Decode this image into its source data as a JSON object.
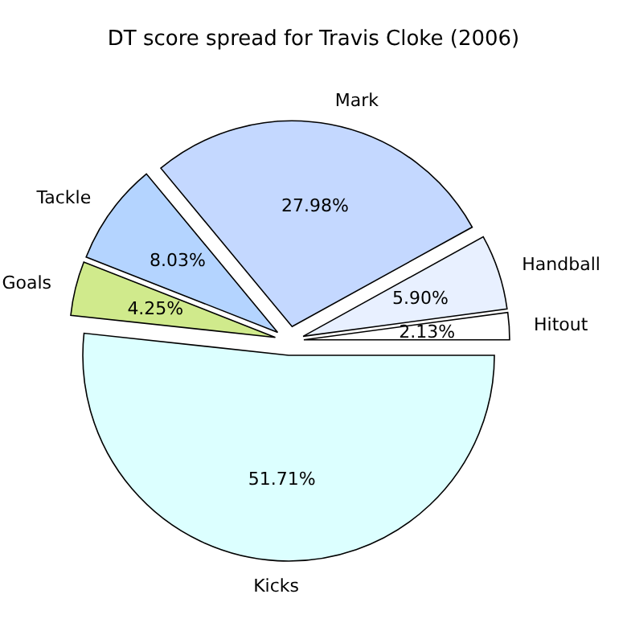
{
  "chart_data": {
    "type": "pie",
    "title": "DT score spread for Travis Cloke (2006)",
    "categories": [
      "Hitout",
      "Handball",
      "Mark",
      "Tackle",
      "Goals",
      "Kicks"
    ],
    "values": [
      2.13,
      5.9,
      27.98,
      8.03,
      4.25,
      51.71
    ],
    "value_labels": [
      "2.13%",
      "5.90%",
      "27.98%",
      "8.03%",
      "4.25%",
      "51.71%"
    ],
    "colors": [
      "#ffffff",
      "#e8f0ff",
      "#c4d8ff",
      "#b4d4ff",
      "#d0ea8c",
      "#dcffff"
    ]
  }
}
